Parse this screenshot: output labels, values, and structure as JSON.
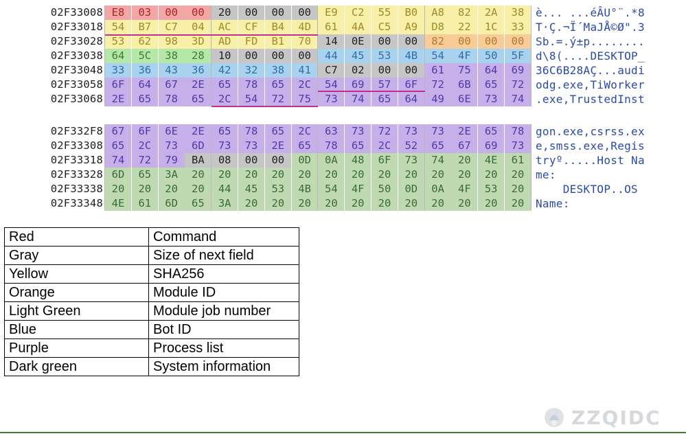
{
  "dump_top": [
    {
      "addr": "02F33008",
      "bytes": [
        [
          "E8",
          "red"
        ],
        [
          "03",
          "red"
        ],
        [
          "00",
          "red"
        ],
        [
          "00",
          "red"
        ],
        [
          "20",
          "gray"
        ],
        [
          "00",
          "gray"
        ],
        [
          "00",
          "gray"
        ],
        [
          "00",
          "gray"
        ],
        [
          "E9",
          "yel"
        ],
        [
          "C2",
          "yel"
        ],
        [
          "55",
          "yel"
        ],
        [
          "B0",
          "yel"
        ],
        [
          "A8",
          "yel"
        ],
        [
          "82",
          "yel"
        ],
        [
          "2A",
          "yel"
        ],
        [
          "38",
          "yel"
        ]
      ],
      "ascii": "è... ...éÂU°¨.*8"
    },
    {
      "addr": "02F33018",
      "bytes": [
        [
          "54",
          "yel"
        ],
        [
          "B7",
          "yel"
        ],
        [
          "C7",
          "yel"
        ],
        [
          "04",
          "yel"
        ],
        [
          "AC",
          "yel"
        ],
        [
          "CF",
          "yel"
        ],
        [
          "B4",
          "yel"
        ],
        [
          "4D",
          "yel"
        ],
        [
          "61",
          "yel"
        ],
        [
          "4A",
          "yel"
        ],
        [
          "C5",
          "yel"
        ],
        [
          "A9",
          "yel"
        ],
        [
          "D8",
          "yel"
        ],
        [
          "22",
          "yel"
        ],
        [
          "1C",
          "yel"
        ],
        [
          "33",
          "yel"
        ]
      ],
      "ascii": "T·Ç.¬Ï´MaJÅ©Ø\".3"
    },
    {
      "addr": "02F33028",
      "bytes": [
        [
          "53",
          "yel"
        ],
        [
          "62",
          "yel"
        ],
        [
          "98",
          "yel"
        ],
        [
          "3D",
          "yel"
        ],
        [
          "AD",
          "yel"
        ],
        [
          "FD",
          "yel"
        ],
        [
          "B1",
          "yel"
        ],
        [
          "70",
          "yel"
        ],
        [
          "14",
          "gray"
        ],
        [
          "0E",
          "gray"
        ],
        [
          "00",
          "gray"
        ],
        [
          "00",
          "gray"
        ],
        [
          "82",
          "org"
        ],
        [
          "00",
          "org"
        ],
        [
          "00",
          "org"
        ],
        [
          "00",
          "org"
        ]
      ],
      "ascii": "Sb.=.ý±p........"
    },
    {
      "addr": "02F33038",
      "bytes": [
        [
          "64",
          "lg"
        ],
        [
          "5C",
          "lg"
        ],
        [
          "38",
          "lg"
        ],
        [
          "28",
          "lg"
        ],
        [
          "10",
          "gray"
        ],
        [
          "00",
          "gray"
        ],
        [
          "00",
          "gray"
        ],
        [
          "00",
          "gray"
        ],
        [
          "44",
          "blue"
        ],
        [
          "45",
          "blue"
        ],
        [
          "53",
          "blue"
        ],
        [
          "4B",
          "blue"
        ],
        [
          "54",
          "blue"
        ],
        [
          "4F",
          "blue"
        ],
        [
          "50",
          "blue"
        ],
        [
          "5F",
          "blue"
        ]
      ],
      "ascii": "d\\8(....DESKTOP_"
    },
    {
      "addr": "02F33048",
      "bytes": [
        [
          "33",
          "blue"
        ],
        [
          "36",
          "blue"
        ],
        [
          "43",
          "blue"
        ],
        [
          "36",
          "blue"
        ],
        [
          "42",
          "blue"
        ],
        [
          "32",
          "blue"
        ],
        [
          "38",
          "blue"
        ],
        [
          "41",
          "blue"
        ],
        [
          "C7",
          "gray"
        ],
        [
          "02",
          "gray"
        ],
        [
          "00",
          "gray"
        ],
        [
          "00",
          "gray"
        ],
        [
          "61",
          "pur"
        ],
        [
          "75",
          "pur"
        ],
        [
          "64",
          "pur"
        ],
        [
          "69",
          "pur"
        ]
      ],
      "ascii": "36C6B28AÇ...audi"
    },
    {
      "addr": "02F33058",
      "bytes": [
        [
          "6F",
          "pur"
        ],
        [
          "64",
          "pur"
        ],
        [
          "67",
          "pur"
        ],
        [
          "2E",
          "pur"
        ],
        [
          "65",
          "pur"
        ],
        [
          "78",
          "pur"
        ],
        [
          "65",
          "pur"
        ],
        [
          "2C",
          "pur"
        ],
        [
          "54",
          "pur"
        ],
        [
          "69",
          "pur"
        ],
        [
          "57",
          "pur"
        ],
        [
          "6F",
          "pur"
        ],
        [
          "72",
          "pur"
        ],
        [
          "6B",
          "pur"
        ],
        [
          "65",
          "pur"
        ],
        [
          "72",
          "pur"
        ]
      ],
      "ascii": "odg.exe,TiWorker"
    },
    {
      "addr": "02F33068",
      "bytes": [
        [
          "2E",
          "pur"
        ],
        [
          "65",
          "pur"
        ],
        [
          "78",
          "pur"
        ],
        [
          "65",
          "pur"
        ],
        [
          "2C",
          "pur"
        ],
        [
          "54",
          "pur"
        ],
        [
          "72",
          "pur"
        ],
        [
          "75",
          "pur"
        ],
        [
          "73",
          "pur"
        ],
        [
          "74",
          "pur"
        ],
        [
          "65",
          "pur"
        ],
        [
          "64",
          "pur"
        ],
        [
          "49",
          "pur"
        ],
        [
          "6E",
          "pur"
        ],
        [
          "73",
          "pur"
        ],
        [
          "74",
          "pur"
        ]
      ],
      "ascii": ".exe,TrustedInst"
    }
  ],
  "dump_bottom": [
    {
      "addr": "02F332F8",
      "bytes": [
        [
          "67",
          "pur"
        ],
        [
          "6F",
          "pur"
        ],
        [
          "6E",
          "pur"
        ],
        [
          "2E",
          "pur"
        ],
        [
          "65",
          "pur"
        ],
        [
          "78",
          "pur"
        ],
        [
          "65",
          "pur"
        ],
        [
          "2C",
          "pur"
        ],
        [
          "63",
          "pur"
        ],
        [
          "73",
          "pur"
        ],
        [
          "72",
          "pur"
        ],
        [
          "73",
          "pur"
        ],
        [
          "73",
          "pur"
        ],
        [
          "2E",
          "pur"
        ],
        [
          "65",
          "pur"
        ],
        [
          "78",
          "pur"
        ]
      ],
      "ascii": "gon.exe,csrss.ex"
    },
    {
      "addr": "02F33308",
      "bytes": [
        [
          "65",
          "pur"
        ],
        [
          "2C",
          "pur"
        ],
        [
          "73",
          "pur"
        ],
        [
          "6D",
          "pur"
        ],
        [
          "73",
          "pur"
        ],
        [
          "73",
          "pur"
        ],
        [
          "2E",
          "pur"
        ],
        [
          "65",
          "pur"
        ],
        [
          "78",
          "pur"
        ],
        [
          "65",
          "pur"
        ],
        [
          "2C",
          "pur"
        ],
        [
          "52",
          "pur"
        ],
        [
          "65",
          "pur"
        ],
        [
          "67",
          "pur"
        ],
        [
          "69",
          "pur"
        ],
        [
          "73",
          "pur"
        ]
      ],
      "ascii": "e,smss.exe,Regis"
    },
    {
      "addr": "02F33318",
      "bytes": [
        [
          "74",
          "pur"
        ],
        [
          "72",
          "pur"
        ],
        [
          "79",
          "pur"
        ],
        [
          "BA",
          "gray"
        ],
        [
          "08",
          "gray"
        ],
        [
          "00",
          "gray"
        ],
        [
          "00",
          "gray"
        ],
        [
          "0D",
          "dg"
        ],
        [
          "0A",
          "dg"
        ],
        [
          "48",
          "dg"
        ],
        [
          "6F",
          "dg"
        ],
        [
          "73",
          "dg"
        ],
        [
          "74",
          "dg"
        ],
        [
          "20",
          "dg"
        ],
        [
          "4E",
          "dg"
        ],
        [
          "61",
          "dg"
        ]
      ],
      "ascii": "tryº.....Host Na"
    },
    {
      "addr": "02F33328",
      "bytes": [
        [
          "6D",
          "dg"
        ],
        [
          "65",
          "dg"
        ],
        [
          "3A",
          "dg"
        ],
        [
          "20",
          "dg"
        ],
        [
          "20",
          "dg"
        ],
        [
          "20",
          "dg"
        ],
        [
          "20",
          "dg"
        ],
        [
          "20",
          "dg"
        ],
        [
          "20",
          "dg"
        ],
        [
          "20",
          "dg"
        ],
        [
          "20",
          "dg"
        ],
        [
          "20",
          "dg"
        ],
        [
          "20",
          "dg"
        ],
        [
          "20",
          "dg"
        ],
        [
          "20",
          "dg"
        ],
        [
          "20",
          "dg"
        ]
      ],
      "ascii": "me:"
    },
    {
      "addr": "02F33338",
      "bytes": [
        [
          "20",
          "dg"
        ],
        [
          "20",
          "dg"
        ],
        [
          "20",
          "dg"
        ],
        [
          "20",
          "dg"
        ],
        [
          "44",
          "dg"
        ],
        [
          "45",
          "dg"
        ],
        [
          "53",
          "dg"
        ],
        [
          "4B",
          "dg"
        ],
        [
          "54",
          "dg"
        ],
        [
          "4F",
          "dg"
        ],
        [
          "50",
          "dg"
        ],
        [
          "0D",
          "dg"
        ],
        [
          "0A",
          "dg"
        ],
        [
          "4F",
          "dg"
        ],
        [
          "53",
          "dg"
        ],
        [
          "20",
          "dg"
        ]
      ],
      "ascii": "    DESKTOP..OS"
    },
    {
      "addr": "02F33348",
      "bytes": [
        [
          "4E",
          "dg"
        ],
        [
          "61",
          "dg"
        ],
        [
          "6D",
          "dg"
        ],
        [
          "65",
          "dg"
        ],
        [
          "3A",
          "dg"
        ],
        [
          "20",
          "dg"
        ],
        [
          "20",
          "dg"
        ],
        [
          "20",
          "dg"
        ],
        [
          "20",
          "dg"
        ],
        [
          "20",
          "dg"
        ],
        [
          "20",
          "dg"
        ],
        [
          "20",
          "dg"
        ],
        [
          "20",
          "dg"
        ],
        [
          "20",
          "dg"
        ],
        [
          "20",
          "dg"
        ],
        [
          "20",
          "dg"
        ]
      ],
      "ascii": "Name:"
    }
  ],
  "legend": [
    {
      "color": "Red",
      "meaning": "Command"
    },
    {
      "color": "Gray",
      "meaning": "Size of next field"
    },
    {
      "color": "Yellow",
      "meaning": "SHA256"
    },
    {
      "color": "Orange",
      "meaning": "Module ID"
    },
    {
      "color": "Light Green",
      "meaning": "Module job number"
    },
    {
      "color": "Blue",
      "meaning": "Bot ID"
    },
    {
      "color": "Purple",
      "meaning": "Process list"
    },
    {
      "color": "Dark green",
      "meaning": "System information"
    }
  ],
  "watermark": "ZZQIDC",
  "colors": {
    "red": "#f2a7a7",
    "gray": "#c6c6c6",
    "yellow": "#f8efa8",
    "orange": "#f7cc98",
    "light_green": "#b5e8a8",
    "blue": "#a9d2ef",
    "purple": "#c7b0ea",
    "dark_green": "#bfd9b3",
    "footer_line": "#3b7d2f"
  }
}
